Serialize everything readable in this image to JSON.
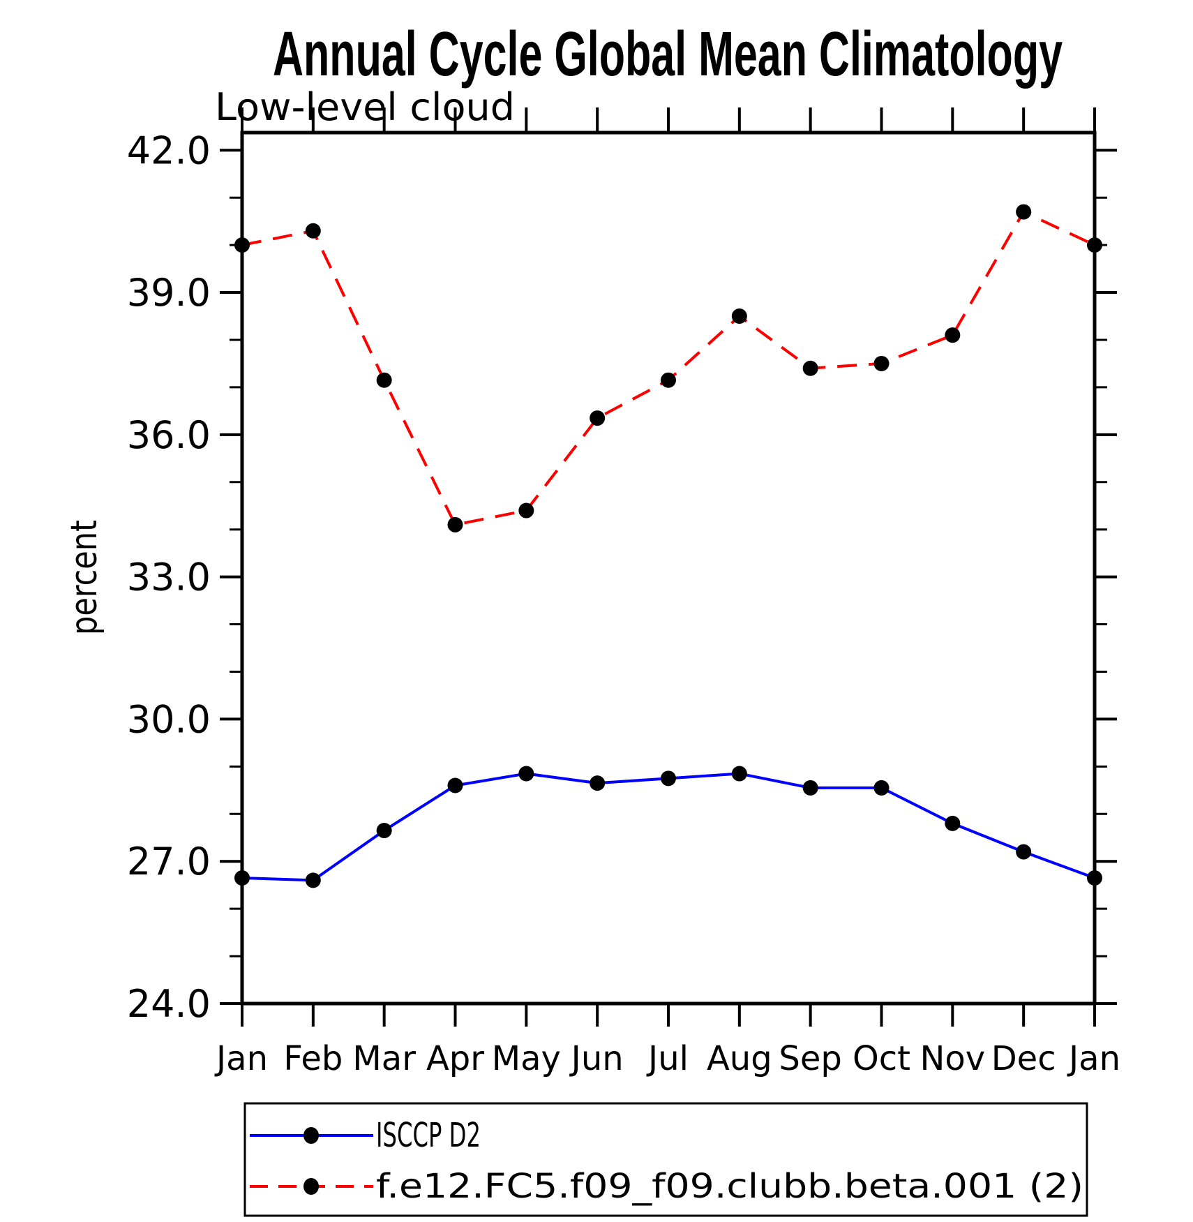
{
  "chart_data": {
    "type": "line",
    "title": "Annual Cycle Global Mean Climatology",
    "subtitle": "Low-level cloud",
    "ylabel": "percent",
    "categories": [
      "Jan",
      "Feb",
      "Mar",
      "Apr",
      "May",
      "Jun",
      "Jul",
      "Aug",
      "Sep",
      "Oct",
      "Nov",
      "Dec",
      "Jan"
    ],
    "ylim": [
      24.0,
      42.0
    ],
    "ytick_major_step": 3.0,
    "ytick_minor_step": 1.0,
    "ytick_labels": [
      "24.0",
      "27.0",
      "30.0",
      "33.0",
      "36.0",
      "39.0",
      "42.0"
    ],
    "grid": false,
    "legend_position": "bottom-box",
    "axis_color": "#000000",
    "marker_color": "#000000",
    "series": [
      {
        "name": "ISCCP D2",
        "color": "#0000ff",
        "line_style": "solid",
        "marker": "filled-circle",
        "values": [
          26.65,
          26.6,
          27.65,
          28.6,
          28.85,
          28.65,
          28.75,
          28.85,
          28.55,
          28.55,
          27.8,
          27.2,
          26.65
        ]
      },
      {
        "name": "f.e12.FC5.f09_f09.clubb.beta.001 (2)",
        "color": "#ff0000",
        "line_style": "dashed",
        "marker": "filled-circle",
        "values": [
          40.0,
          40.3,
          37.15,
          34.1,
          34.4,
          36.35,
          37.15,
          38.5,
          37.4,
          37.5,
          38.1,
          40.7,
          40.0
        ]
      }
    ]
  }
}
